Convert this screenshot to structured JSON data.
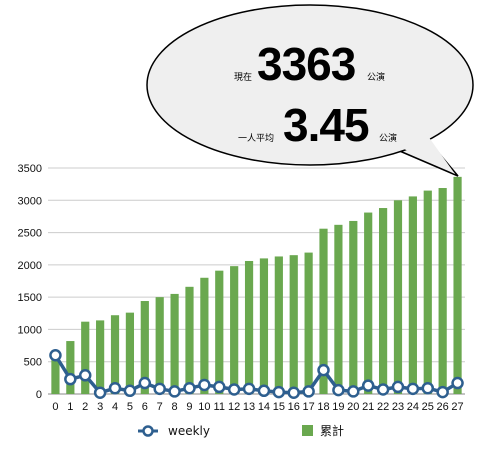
{
  "callout": {
    "now_prefix": "現在",
    "now_value": "3363",
    "now_unit": "公演",
    "avg_prefix": "一人平均",
    "avg_value": "3.45",
    "avg_unit": "公演"
  },
  "colors": {
    "bar": "#6aa84f",
    "line": "#2e5f8f",
    "marker_fill": "#ffffff",
    "grid": "#cccccc"
  },
  "chart_data": {
    "type": "bar+line",
    "categories": [
      "0",
      "1",
      "2",
      "3",
      "4",
      "5",
      "6",
      "7",
      "8",
      "9",
      "10",
      "11",
      "12",
      "13",
      "14",
      "15",
      "16",
      "17",
      "18",
      "19",
      "20",
      "21",
      "22",
      "23",
      "24",
      "25",
      "26",
      "27"
    ],
    "ylim": [
      0,
      3500
    ],
    "yticks": [
      0,
      500,
      1000,
      1500,
      2000,
      2500,
      3000,
      3500
    ],
    "grid": true,
    "legend_position": "bottom",
    "series": [
      {
        "name": "weekly",
        "kind": "line",
        "values": [
          600,
          230,
          290,
          20,
          90,
          50,
          170,
          80,
          40,
          90,
          140,
          110,
          70,
          80,
          50,
          30,
          20,
          40,
          370,
          60,
          40,
          130,
          70,
          110,
          80,
          90,
          30,
          170
        ]
      },
      {
        "name": "累計",
        "kind": "bar",
        "values": [
          600,
          820,
          1120,
          1140,
          1220,
          1260,
          1440,
          1500,
          1550,
          1660,
          1800,
          1910,
          1980,
          2060,
          2100,
          2130,
          2150,
          2190,
          2560,
          2620,
          2680,
          2810,
          2880,
          3000,
          3060,
          3150,
          3190,
          3363
        ]
      }
    ]
  }
}
